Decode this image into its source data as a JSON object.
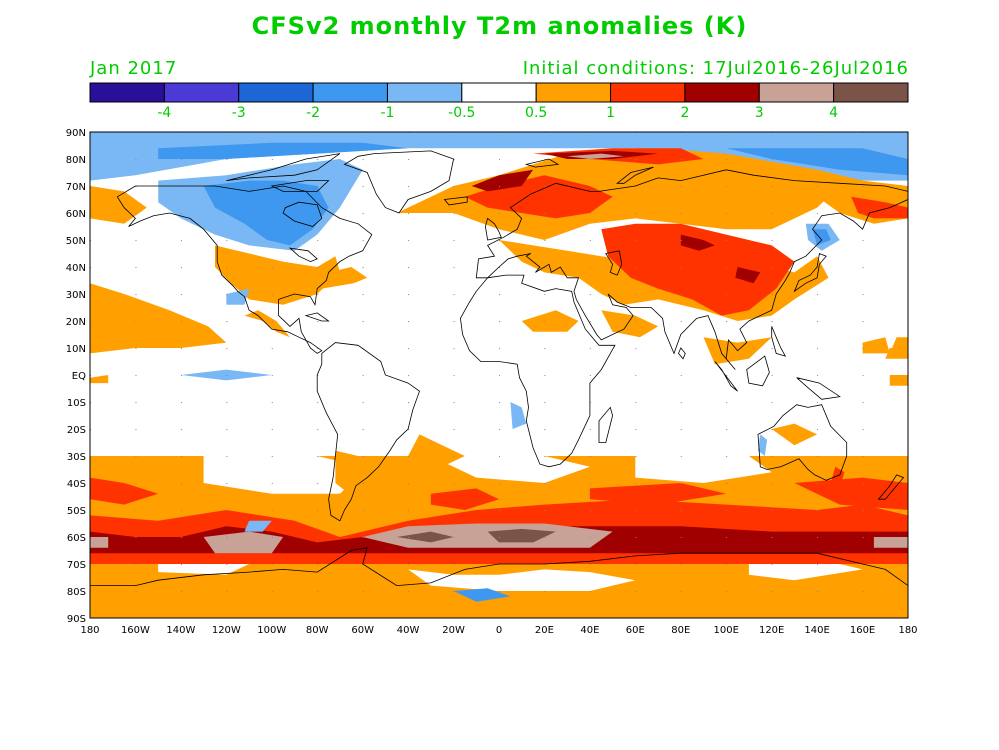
{
  "header": {
    "title": "CFSv2 monthly T2m anomalies (K)",
    "month": "Jan 2017",
    "initial_conditions": "Initial conditions: 17Jul2016-26Jul2016"
  },
  "legend": {
    "labels": [
      "-4",
      "-3",
      "-2",
      "-1",
      "-0.5",
      "0.5",
      "1",
      "2",
      "3",
      "4"
    ],
    "colors": [
      "#2a0f99",
      "#4c3ad6",
      "#1c66d6",
      "#3e98f0",
      "#7ab8f5",
      "#ffffff",
      "#ffa000",
      "#ff3300",
      "#a00000",
      "#c8a296",
      "#7a5448"
    ],
    "label_color": "#00cc00"
  },
  "map": {
    "lat_labels": [
      "90N",
      "80N",
      "70N",
      "60N",
      "50N",
      "40N",
      "30N",
      "20N",
      "10N",
      "EQ",
      "10S",
      "20S",
      "30S",
      "40S",
      "50S",
      "60S",
      "70S",
      "80S",
      "90S"
    ],
    "lon_labels": [
      "180",
      "160W",
      "140W",
      "120W",
      "100W",
      "80W",
      "60W",
      "40W",
      "20W",
      "0",
      "20E",
      "40E",
      "60E",
      "80E",
      "100E",
      "120E",
      "140E",
      "160E",
      "180"
    ],
    "colors": {
      "orange": "#ffa000",
      "red": "#ff3300",
      "darkred": "#a00000",
      "rose": "#c8a296",
      "brown": "#7a5448",
      "lightblue": "#7ab8f5",
      "blue": "#3e98f0",
      "coast": "#000000"
    }
  }
}
